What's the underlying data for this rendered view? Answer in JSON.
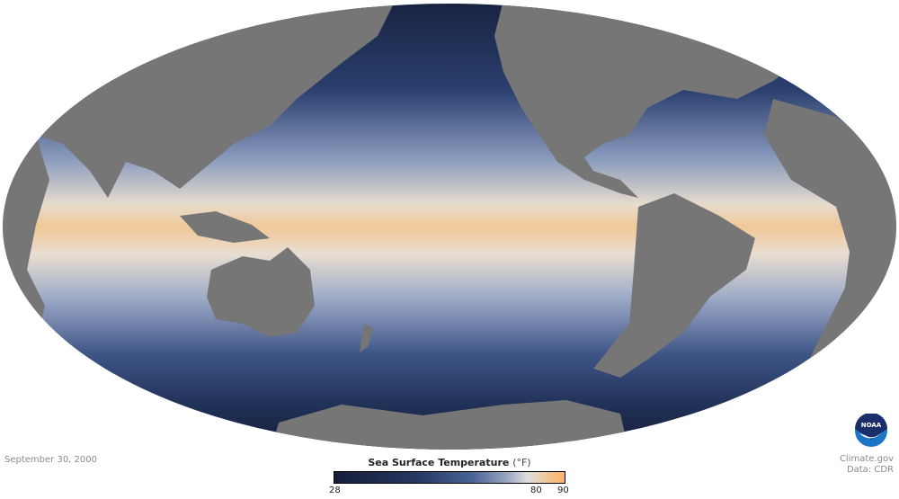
{
  "date": "September 30, 2000",
  "legend": {
    "title": "Sea Surface Temperature",
    "unit": "(°F)",
    "ticks": [
      "28",
      "80",
      "90"
    ],
    "min": 28,
    "max": 90,
    "colors": {
      "cold": "#141e3a",
      "mid": "#4a6396",
      "neutral": "#dddddd",
      "warm": "#f9b46c"
    }
  },
  "credit": {
    "site": "Climate.gov",
    "source": "Data: CDR"
  },
  "logo": {
    "text": "NOAA"
  },
  "map": {
    "projection": "Mollweide",
    "land_color": "#767676"
  }
}
